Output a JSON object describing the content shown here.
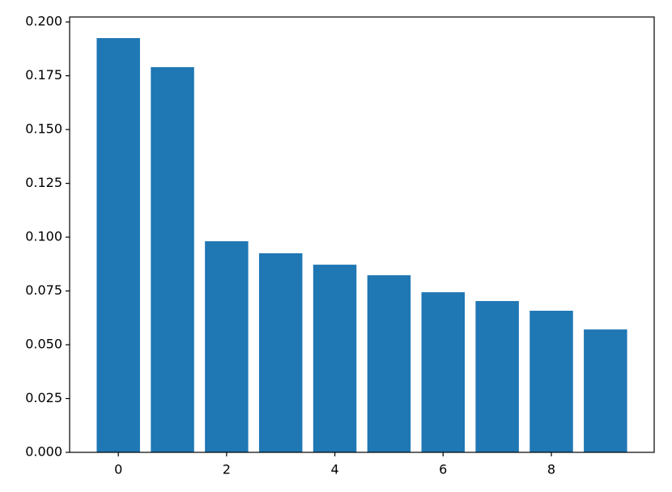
{
  "chart_data": {
    "type": "bar",
    "x": [
      0,
      1,
      2,
      3,
      4,
      5,
      6,
      7,
      8,
      9
    ],
    "values": [
      0.1925,
      0.179,
      0.0981,
      0.0925,
      0.0872,
      0.0823,
      0.0744,
      0.0703,
      0.0658,
      0.0571
    ],
    "color": "#1f77b4",
    "xlim": [
      -0.9,
      9.9
    ],
    "xticks": [
      0,
      2,
      4,
      6,
      8
    ],
    "ylim": [
      0,
      0.2023
    ],
    "yticks": [
      {
        "value": 0,
        "label": "0.000"
      },
      {
        "value": 0.025,
        "label": "0.025"
      },
      {
        "value": 0.05,
        "label": "0.050"
      },
      {
        "value": 0.075,
        "label": "0.075"
      },
      {
        "value": 0.1,
        "label": "0.100"
      },
      {
        "value": 0.125,
        "label": "0.125"
      },
      {
        "value": 0.15,
        "label": "0.150"
      },
      {
        "value": 0.175,
        "label": "0.175"
      },
      {
        "value": 0.2,
        "label": "0.200"
      }
    ],
    "grid": false
  }
}
